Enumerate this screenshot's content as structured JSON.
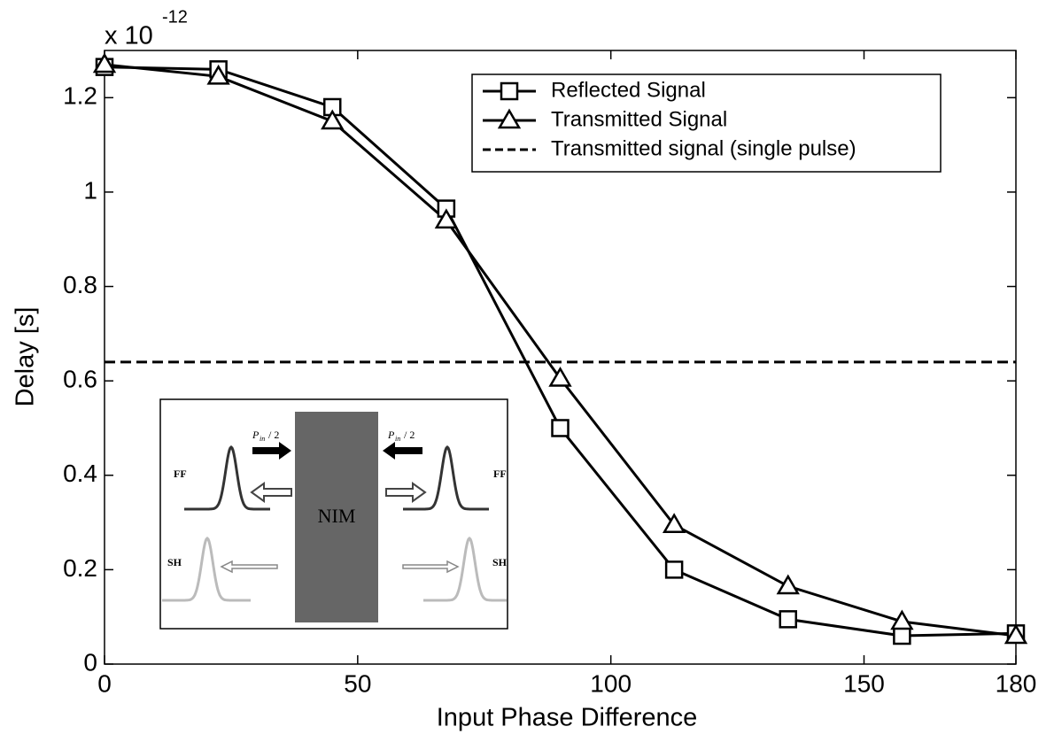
{
  "chart_data": {
    "type": "line",
    "xlabel": "Input Phase Difference",
    "ylabel": "Delay [s]",
    "y_scale_label": "x 10",
    "y_scale_exponent": "-12",
    "x": [
      0,
      22.5,
      45,
      67.5,
      90,
      112.5,
      135,
      157.5,
      180
    ],
    "series": [
      {
        "name": "Reflected Signal",
        "color": "#000000",
        "marker": "square",
        "values": [
          1.265,
          1.26,
          1.18,
          0.965,
          0.5,
          0.2,
          0.095,
          0.06,
          0.065
        ]
      },
      {
        "name": "Transmitted Signal",
        "color": "#000000",
        "marker": "triangle",
        "values": [
          1.27,
          1.245,
          1.15,
          0.94,
          0.605,
          0.295,
          0.165,
          0.09,
          0.06
        ]
      }
    ],
    "reference_line": {
      "name": "Transmitted signal (single pulse)",
      "value": 0.64,
      "color": "#000000",
      "style": "dashed"
    },
    "xlim": [
      0,
      180
    ],
    "xticks": [
      0,
      50,
      100,
      150,
      180
    ],
    "ylim": [
      0,
      1.3
    ],
    "yticks": [
      0,
      0.2,
      0.4,
      0.6,
      0.8,
      1,
      1.2
    ],
    "grid": false,
    "legend": "upper right",
    "inset": {
      "material": "NIM",
      "fundamental": "FF",
      "harmonic": "SH",
      "pump": {
        "symbol": "P",
        "subscript": "in",
        "divisor": "/ 2"
      }
    }
  }
}
